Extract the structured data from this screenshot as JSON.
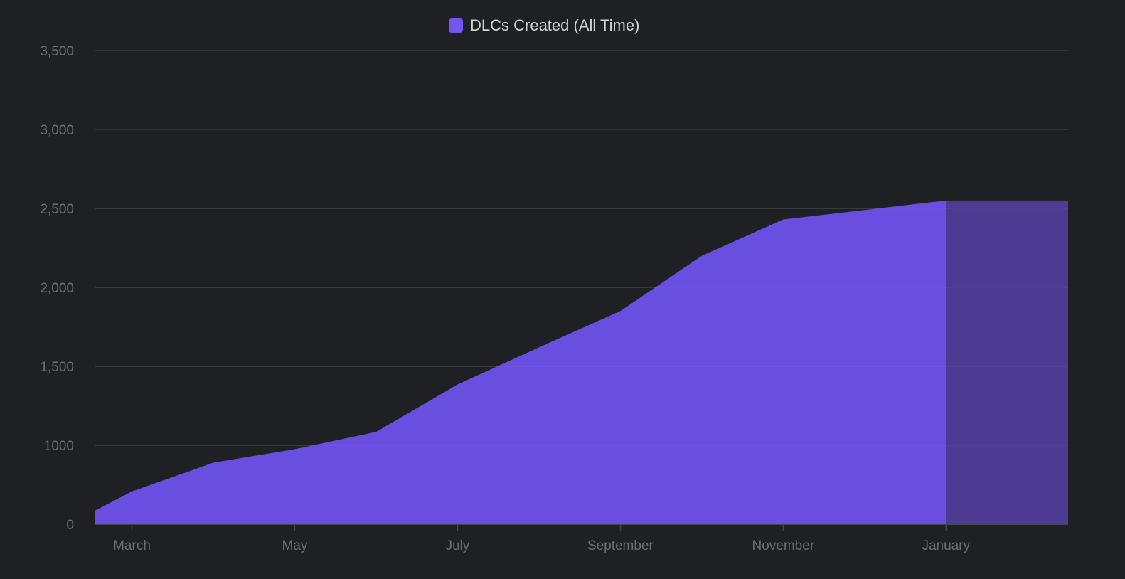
{
  "colors": {
    "background": "#1f2024",
    "area": "#684fdf",
    "area_projected": "#4b3c91",
    "legend_swatch": "#7455f0"
  },
  "chart_data": {
    "type": "area",
    "title": "",
    "legend": [
      {
        "label": "DLCs Created (All Time)",
        "position": "top-center"
      }
    ],
    "x_range": [
      -0.45,
      11.5
    ],
    "ylim": [
      0,
      3500
    ],
    "grid": true,
    "x_ticks": [
      {
        "label": "March",
        "x": 0
      },
      {
        "label": "May",
        "x": 2
      },
      {
        "label": "July",
        "x": 4
      },
      {
        "label": "September",
        "x": 6
      },
      {
        "label": "November",
        "x": 8
      },
      {
        "label": "January",
        "x": 10
      }
    ],
    "y_ticks": [
      {
        "label": "0",
        "value": 0
      },
      {
        "label": "1000",
        "value": 1000
      },
      {
        "label": "1,500",
        "value": 1500
      },
      {
        "label": "2,000",
        "value": 2000
      },
      {
        "label": "2,500",
        "value": 2500
      },
      {
        "label": "3,000",
        "value": 3000
      },
      {
        "label": "3,500",
        "value": 3500
      }
    ],
    "series": [
      {
        "name": "DLCs Created (All Time)",
        "points": [
          {
            "x": -0.45,
            "y": 175
          },
          {
            "x": 0,
            "y": 415
          },
          {
            "x": 1,
            "y": 780
          },
          {
            "x": 2,
            "y": 950
          },
          {
            "x": 3,
            "y": 1085
          },
          {
            "x": 4,
            "y": 1385
          },
          {
            "x": 5,
            "y": 1620
          },
          {
            "x": 6,
            "y": 1850
          },
          {
            "x": 7,
            "y": 2200
          },
          {
            "x": 8,
            "y": 2430
          },
          {
            "x": 9,
            "y": 2490
          },
          {
            "x": 10,
            "y": 2550
          }
        ],
        "projected_band": {
          "x_start": 10,
          "x_end": 11.5,
          "y": 2550
        }
      }
    ]
  }
}
